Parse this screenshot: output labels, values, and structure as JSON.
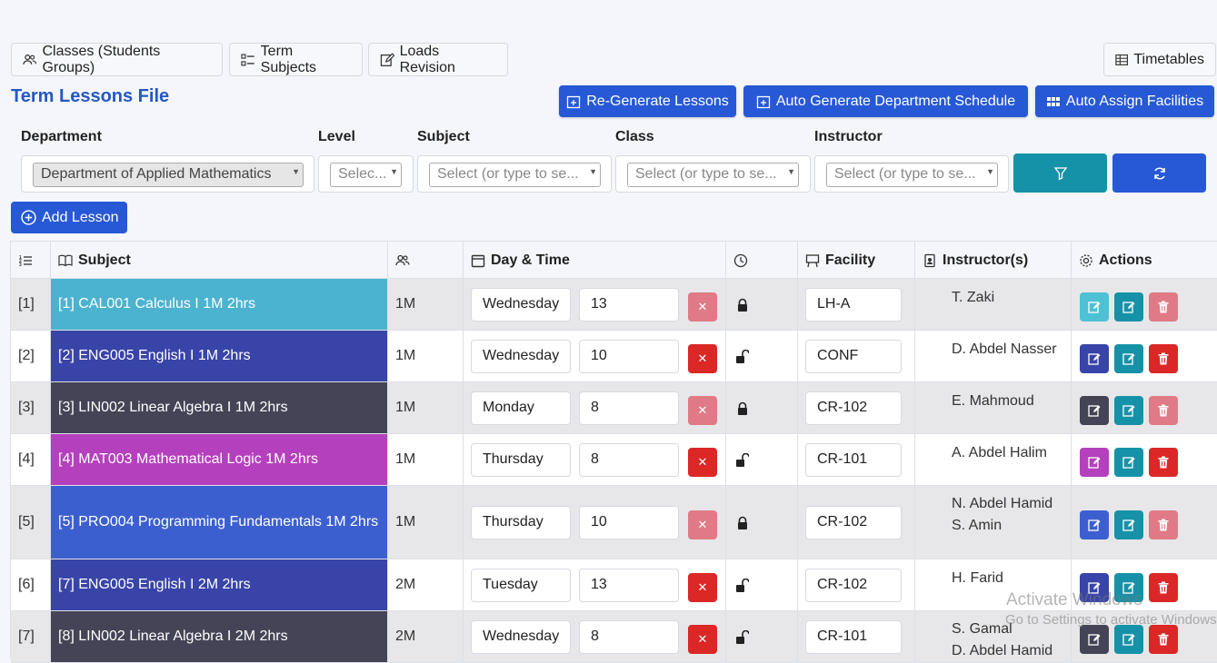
{
  "tabs": {
    "classes": "Classes (Students Groups)",
    "term_subjects": "Term Subjects",
    "loads_revision": "Loads Revision",
    "timetables": "Timetables"
  },
  "page_title": "Term Lessons File",
  "actions": {
    "regenerate": "Re-Generate Lessons",
    "auto_generate": "Auto Generate Department Schedule",
    "auto_assign": "Auto Assign Facilities",
    "add_lesson": "Add Lesson"
  },
  "filters": {
    "department_label": "Department",
    "department_value": "Department of Applied Mathematics",
    "level_label": "Level",
    "level_placeholder": "Selec...",
    "subject_label": "Subject",
    "subject_placeholder": "Select (or type to se...",
    "class_label": "Class",
    "class_placeholder": "Select (or type to se...",
    "instructor_label": "Instructor",
    "instructor_placeholder": "Select (or type to se..."
  },
  "table": {
    "headers": {
      "subject": "Subject",
      "day_time": "Day & Time",
      "facility": "Facility",
      "instructors": "Instructor(s)",
      "actions": "Actions"
    },
    "rows": [
      {
        "idx": "[1]",
        "subject": "[1] CAL001 Calculus I 1M 2hrs",
        "color": "#4bb3d0",
        "class": "1M",
        "day": "Wednesday",
        "time": "13",
        "locked": true,
        "facility": "LH-A",
        "instructors": [
          "T. Zaki"
        ],
        "edit_color": "#4ec1d4",
        "delete_enabled": false
      },
      {
        "idx": "[2]",
        "subject": "[2] ENG005 English I 1M 2hrs",
        "color": "#3844a8",
        "class": "1M",
        "day": "Wednesday",
        "time": "10",
        "locked": false,
        "facility": "CONF",
        "instructors": [
          "D. Abdel Nasser"
        ],
        "edit_color": "#3844a8",
        "delete_enabled": true
      },
      {
        "idx": "[3]",
        "subject": "[3] LIN002 Linear Algebra I 1M 2hrs",
        "color": "#454456",
        "class": "1M",
        "day": "Monday",
        "time": "8",
        "locked": true,
        "facility": "CR-102",
        "instructors": [
          "E. Mahmoud"
        ],
        "edit_color": "#454456",
        "delete_enabled": false
      },
      {
        "idx": "[4]",
        "subject": "[4] MAT003 Mathematical Logic 1M 2hrs",
        "color": "#b540bd",
        "class": "1M",
        "day": "Thursday",
        "time": "8",
        "locked": false,
        "facility": "CR-101",
        "instructors": [
          "A. Abdel Halim"
        ],
        "edit_color": "#b540bd",
        "delete_enabled": true
      },
      {
        "idx": "[5]",
        "subject": "[5] PRO004 Programming Fundamentals 1M 2hrs",
        "color": "#3c5fd0",
        "class": "1M",
        "day": "Thursday",
        "time": "10",
        "locked": true,
        "facility": "CR-102",
        "instructors": [
          "N. Abdel Hamid",
          "S. Amin"
        ],
        "edit_color": "#3c5fd0",
        "delete_enabled": false
      },
      {
        "idx": "[6]",
        "subject": "[7] ENG005 English I 2M 2hrs",
        "color": "#3844a8",
        "class": "2M",
        "day": "Tuesday",
        "time": "13",
        "locked": false,
        "facility": "CR-102",
        "instructors": [
          "H. Farid"
        ],
        "edit_color": "#3844a8",
        "delete_enabled": true
      },
      {
        "idx": "[7]",
        "subject": "[8] LIN002 Linear Algebra I 2M 2hrs",
        "color": "#454456",
        "class": "2M",
        "day": "Wednesday",
        "time": "8",
        "locked": false,
        "facility": "CR-101",
        "instructors": [
          "S. Gamal",
          "D. Abdel Hamid"
        ],
        "edit_color": "#454456",
        "delete_enabled": true
      }
    ]
  },
  "watermark": {
    "line1": "Activate Windows",
    "line2": "Go to Settings to activate Windows."
  }
}
